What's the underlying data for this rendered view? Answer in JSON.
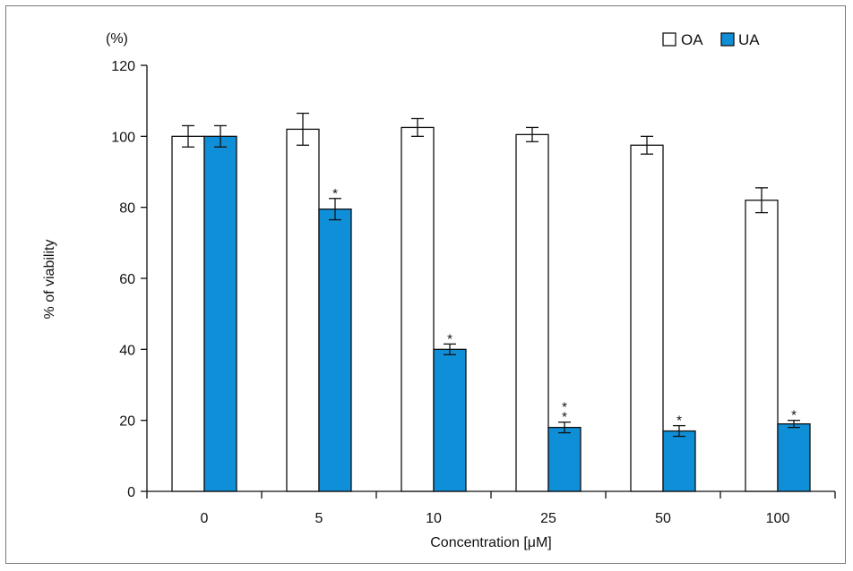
{
  "chart_data": {
    "type": "bar",
    "title": "",
    "unit_label": "(%)",
    "ylabel": "% of viability",
    "xlabel": "Concentration [μM]",
    "ylim": [
      0,
      120
    ],
    "yticks": [
      0,
      20,
      40,
      60,
      80,
      100,
      120
    ],
    "grid": false,
    "legend_position": "top-right",
    "categories": [
      "0",
      "5",
      "10",
      "25",
      "50",
      "100"
    ],
    "series": [
      {
        "name": "OA",
        "color": "#ffffff",
        "values": [
          100,
          102,
          102.5,
          100.5,
          97.5,
          82
        ],
        "errors": [
          3,
          4.5,
          2.5,
          2,
          2.5,
          3.5
        ],
        "annotations": [
          "",
          "",
          "",
          "",
          "",
          ""
        ]
      },
      {
        "name": "UA",
        "color": "#0f8fd8",
        "values": [
          100,
          79.5,
          40,
          18,
          17,
          19
        ],
        "errors": [
          3,
          3,
          1.5,
          1.5,
          1.5,
          1
        ],
        "annotations": [
          "",
          "*",
          "*",
          "* *",
          "*",
          "*"
        ]
      }
    ]
  }
}
